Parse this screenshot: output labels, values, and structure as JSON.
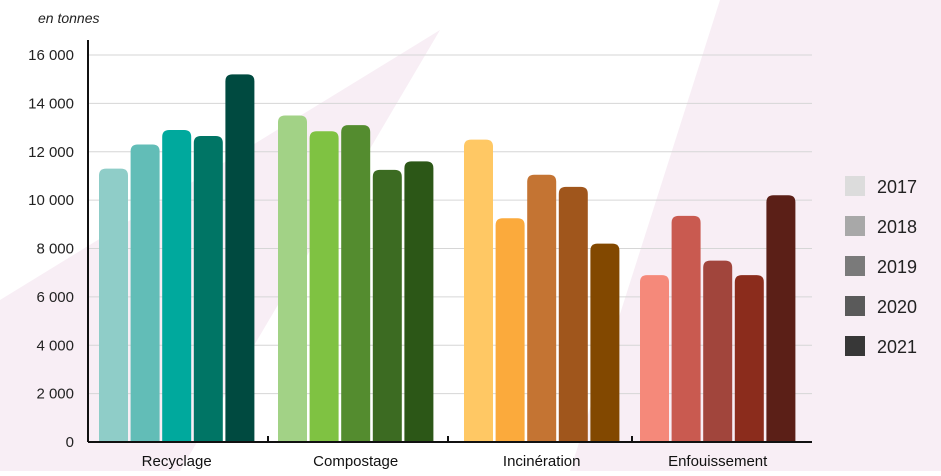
{
  "chart_data": {
    "type": "bar",
    "unit_label": "en tonnes",
    "categories": [
      "Recyclage",
      "Compostage",
      "Incinération",
      "Enfouissement"
    ],
    "series": [
      {
        "name": "2017",
        "values": [
          11300,
          13500,
          12500,
          6900
        ]
      },
      {
        "name": "2018",
        "values": [
          12300,
          12850,
          9250,
          9350
        ]
      },
      {
        "name": "2019",
        "values": [
          12900,
          13100,
          11050,
          7500
        ]
      },
      {
        "name": "2020",
        "values": [
          12650,
          11250,
          10550,
          6900
        ]
      },
      {
        "name": "2021",
        "values": [
          15200,
          11600,
          8200,
          10200
        ]
      }
    ],
    "category_colors": [
      [
        "#8fcdc8",
        "#62bdb7",
        "#00a99d",
        "#007565",
        "#004a40"
      ],
      [
        "#a2d286",
        "#7fc242",
        "#548c2f",
        "#3c6b22",
        "#2c5717"
      ],
      [
        "#ffc864",
        "#fbaa3c",
        "#c47433",
        "#a0561c",
        "#824800"
      ],
      [
        "#f5897a",
        "#c95a50",
        "#a1453c",
        "#8b2c1c",
        "#5b1f17"
      ]
    ],
    "legend": {
      "position": "right",
      "entries": [
        "2017",
        "2018",
        "2019",
        "2020",
        "2021"
      ],
      "colors": [
        "#dcdcdc",
        "#a8a8a8",
        "#7a7a7a",
        "#5a5a5a",
        "#373737"
      ]
    },
    "yticks": [
      0,
      2000,
      4000,
      6000,
      8000,
      10000,
      12000,
      14000,
      16000
    ],
    "ytick_labels": [
      "0",
      "2 000",
      "4 000",
      "6 000",
      "8 000",
      "10 000",
      "12 000",
      "14 000",
      "16 000"
    ],
    "ylim": [
      0,
      16000
    ],
    "grid": true
  }
}
